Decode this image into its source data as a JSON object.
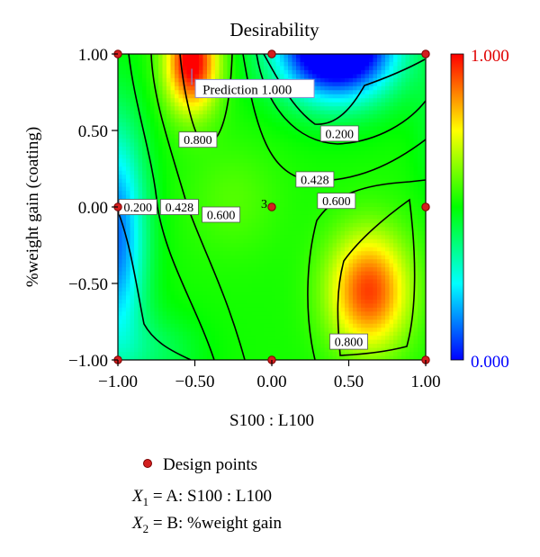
{
  "chart_data": {
    "type": "heatmap",
    "subtype": "contour",
    "title": "Desirability",
    "xlabel": "S100 : L100",
    "ylabel": "%weight gain (coating)",
    "xlim": [
      -1.0,
      1.0
    ],
    "ylim": [
      -1.0,
      1.0
    ],
    "x_ticks": [
      "−1.00",
      "−0.50",
      "0.00",
      "0.50",
      "1.00"
    ],
    "y_ticks": [
      "−1.00",
      "−0.50",
      "0.00",
      "0.50",
      "1.00"
    ],
    "colorbar": {
      "min_label": "0.000",
      "max_label": "1.000",
      "min_color": "#0000ff",
      "max_color": "#ff0000"
    },
    "contour_levels": [
      0.2,
      0.428,
      0.6,
      0.8
    ],
    "contour_labels": [
      {
        "text": "0.800",
        "x": -0.48,
        "y": 0.44
      },
      {
        "text": "0.200",
        "x": 0.44,
        "y": 0.48
      },
      {
        "text": "0.428",
        "x": 0.28,
        "y": 0.18
      },
      {
        "text": "0.200",
        "x": -0.87,
        "y": 0.0
      },
      {
        "text": "0.428",
        "x": -0.6,
        "y": 0.0
      },
      {
        "text": "0.600",
        "x": -0.33,
        "y": -0.05
      },
      {
        "text": "0.600",
        "x": 0.42,
        "y": 0.04
      },
      {
        "text": "0.800",
        "x": 0.5,
        "y": -0.88
      }
    ],
    "prediction": {
      "label": "Prediction 1.000",
      "x": -0.52,
      "y": 0.88
    },
    "design_points": [
      {
        "x": -1.0,
        "y": 1.0
      },
      {
        "x": 0.0,
        "y": 1.0
      },
      {
        "x": 1.0,
        "y": 1.0
      },
      {
        "x": -1.0,
        "y": 0.0
      },
      {
        "x": 0.0,
        "y": 0.0
      },
      {
        "x": 1.0,
        "y": 0.0
      },
      {
        "x": -1.0,
        "y": -1.0
      },
      {
        "x": 0.0,
        "y": -1.0
      },
      {
        "x": 1.0,
        "y": -1.0
      }
    ],
    "center_point_replicates": "3",
    "legend": {
      "marker_label": "Design points",
      "x1_sym": "X",
      "x1_sub": "1",
      "x1_text": " = A: S100 : L100",
      "x2_sym": "X",
      "x2_sub": "2",
      "x2_text": " = B: %weight gain"
    }
  }
}
